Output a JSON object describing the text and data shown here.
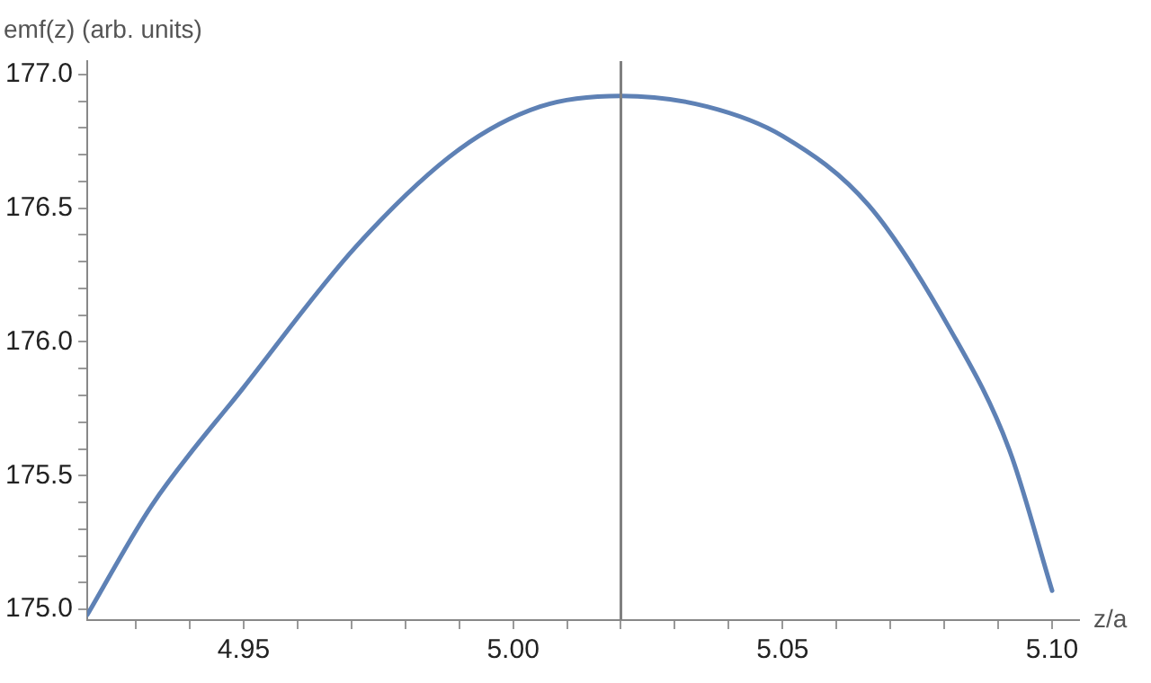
{
  "chart_data": {
    "type": "line",
    "xlabel": "z/a",
    "ylabel": "emf(z) (arb. units)",
    "series": [
      {
        "color": "#5e81b5",
        "x": [
          4.921,
          4.933,
          4.95,
          4.971,
          4.99,
          5.005,
          5.02,
          5.036,
          5.05,
          5.066,
          5.081,
          5.092,
          5.1
        ],
        "values": [
          174.98,
          175.39,
          175.83,
          176.36,
          176.72,
          176.88,
          176.92,
          176.88,
          176.77,
          176.51,
          176.05,
          175.6,
          175.07
        ]
      }
    ],
    "xlim": [
      4.921,
      5.105
    ],
    "ylim": [
      174.96,
      177.05
    ],
    "xticks": [
      {
        "value": 4.93,
        "label": null
      },
      {
        "value": 4.94,
        "label": null
      },
      4.95,
      {
        "value": 4.96,
        "label": null
      },
      {
        "value": 4.97,
        "label": null
      },
      {
        "value": 4.98,
        "label": null
      },
      {
        "value": 4.99,
        "label": null
      },
      {
        "value": 5.0,
        "label": "5.00"
      },
      {
        "value": 5.01,
        "label": null
      },
      {
        "value": 5.02,
        "label": null
      },
      {
        "value": 5.03,
        "label": null
      },
      {
        "value": 5.04,
        "label": null
      },
      5.05,
      {
        "value": 5.06,
        "label": null
      },
      {
        "value": 5.07,
        "label": null
      },
      {
        "value": 5.08,
        "label": null
      },
      {
        "value": 5.09,
        "label": null
      },
      {
        "value": 5.1,
        "label": "5.10"
      }
    ],
    "yticks": [
      {
        "value": 175.0,
        "label": "175.0"
      },
      {
        "value": 175.1,
        "label": null
      },
      {
        "value": 175.2,
        "label": null
      },
      {
        "value": 175.3,
        "label": null
      },
      {
        "value": 175.4,
        "label": null
      },
      175.5,
      {
        "value": 175.6,
        "label": null
      },
      {
        "value": 175.7,
        "label": null
      },
      {
        "value": 175.8,
        "label": null
      },
      {
        "value": 175.9,
        "label": null
      },
      {
        "value": 176.0,
        "label": "176.0"
      },
      {
        "value": 176.1,
        "label": null
      },
      {
        "value": 176.2,
        "label": null
      },
      {
        "value": 176.3,
        "label": null
      },
      {
        "value": 176.4,
        "label": null
      },
      176.5,
      {
        "value": 176.6,
        "label": null
      },
      {
        "value": 176.7,
        "label": null
      },
      {
        "value": 176.8,
        "label": null
      },
      {
        "value": 176.9,
        "label": null
      },
      {
        "value": 177.0,
        "label": "177.0"
      }
    ],
    "ref_lines": [
      {
        "axis": "x",
        "value": 5.02,
        "color": "#808080"
      }
    ],
    "grid": false,
    "legend": false,
    "marker": "none",
    "line_style": "solid"
  }
}
